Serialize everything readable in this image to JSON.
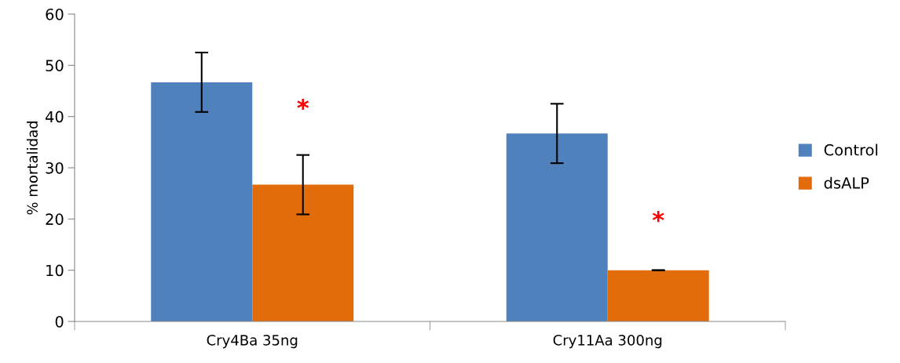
{
  "chart_data": {
    "type": "bar",
    "ylabel": "% mortalidad",
    "categories": [
      "Cry4Ba 35ng",
      "Cry11Aa 300ng"
    ],
    "series": [
      {
        "name": "Control",
        "color": "#4f81bd",
        "values": [
          46.7,
          36.7
        ],
        "errors": [
          5.8,
          5.8
        ]
      },
      {
        "name": "dsALP",
        "color": "#e36c0a",
        "values": [
          26.7,
          10
        ],
        "errors": [
          5.8,
          0
        ]
      }
    ],
    "ylim": [
      0,
      60
    ],
    "yticks": [
      0,
      10,
      20,
      30,
      40,
      50,
      60
    ],
    "grid": false,
    "legend": "right",
    "annotations": [
      {
        "text": "*",
        "x": "Cry4Ba 35ng",
        "y": 41.3
      },
      {
        "text": "*",
        "x": "Cry11Aa 300ng",
        "y": 19.4
      }
    ]
  }
}
